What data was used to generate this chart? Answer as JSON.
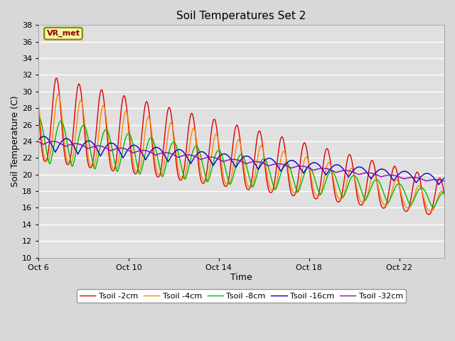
{
  "title": "Soil Temperatures Set 2",
  "xlabel": "Time",
  "ylabel": "Soil Temperature (C)",
  "ylim": [
    10,
    38
  ],
  "yticks": [
    10,
    12,
    14,
    16,
    18,
    20,
    22,
    24,
    26,
    28,
    30,
    32,
    34,
    36,
    38
  ],
  "background_color": "#d8d8d8",
  "plot_bg_color": "#e0e0e0",
  "grid_color": "#ffffff",
  "annotation_text": "VR_met",
  "annotation_bg": "#f5f5a0",
  "annotation_border": "#8B8000",
  "legend_entries": [
    "Tsoil -2cm",
    "Tsoil -4cm",
    "Tsoil -8cm",
    "Tsoil -16cm",
    "Tsoil -32cm"
  ],
  "line_colors": [
    "#dd0000",
    "#ff8800",
    "#00bb00",
    "#0000cc",
    "#9900bb"
  ],
  "xtick_labels": [
    "Oct 6",
    "Oct 10",
    "Oct 14",
    "Oct 18",
    "Oct 22"
  ],
  "xtick_positions": [
    0,
    4,
    8,
    12,
    16
  ]
}
